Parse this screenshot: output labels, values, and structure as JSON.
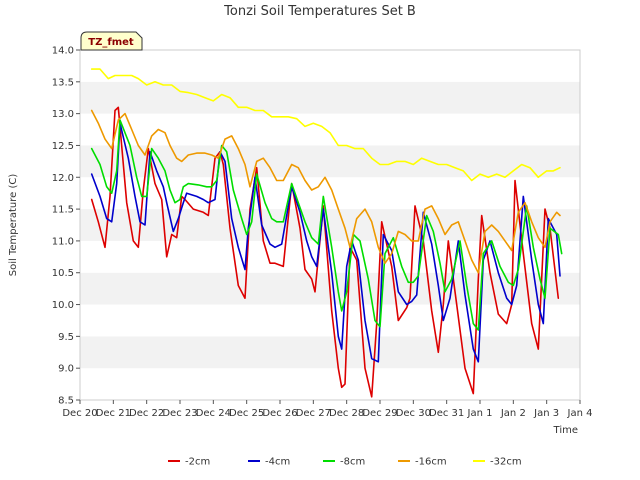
{
  "chart_data": {
    "type": "line",
    "title": "Tonzi Soil Temperatures Set B",
    "xlabel": "Time",
    "ylabel": "Soil Temperature (C)",
    "badge": "TZ_fmet",
    "xlim": [
      0,
      15
    ],
    "ylim": [
      8.5,
      14.0
    ],
    "yticks": [
      8.5,
      9.0,
      9.5,
      10.0,
      10.5,
      11.0,
      11.5,
      12.0,
      12.5,
      13.0,
      13.5,
      14.0
    ],
    "ytick_labels": [
      "8.5",
      "9.0",
      "9.5",
      "10.0",
      "10.5",
      "11.0",
      "11.5",
      "12.0",
      "12.5",
      "13.0",
      "13.5",
      "14.0"
    ],
    "xticks": [
      0,
      1,
      2,
      3,
      4,
      5,
      6,
      7,
      8,
      9,
      10,
      11,
      12,
      13,
      14,
      15
    ],
    "xtick_labels": [
      "Dec 20",
      "Dec 21",
      "Dec 22",
      "Dec 23",
      "Dec 24",
      "Dec 25",
      "Dec 26",
      "Dec 27",
      "Dec 28",
      "Dec 29",
      "Dec 30",
      "Dec 31",
      "Jan 1",
      "Jan 2",
      "Jan 3",
      "Jan 4"
    ],
    "grid": "horizontal bands",
    "legend": "bottom",
    "series": [
      {
        "name": "-2cm",
        "color": "#dd0000",
        "x": [
          0.35,
          0.55,
          0.75,
          0.9,
          1.05,
          1.15,
          1.4,
          1.6,
          1.75,
          1.9,
          2.05,
          2.25,
          2.45,
          2.6,
          2.75,
          2.9,
          3.05,
          3.15,
          3.4,
          3.7,
          3.85,
          4.05,
          4.2,
          4.3,
          4.5,
          4.75,
          4.95,
          5.1,
          5.3,
          5.5,
          5.7,
          5.85,
          6.1,
          6.35,
          6.6,
          6.75,
          6.95,
          7.05,
          7.3,
          7.55,
          7.75,
          7.85,
          7.95,
          8.1,
          8.3,
          8.55,
          8.75,
          8.9,
          9.05,
          9.35,
          9.55,
          9.8,
          9.9,
          10.05,
          10.3,
          10.55,
          10.75,
          10.9,
          11.05,
          11.3,
          11.55,
          11.8,
          11.95,
          12.05,
          12.3,
          12.55,
          12.8,
          12.95,
          13.05,
          13.3,
          13.55,
          13.75,
          13.95,
          14.1,
          14.35
        ],
        "values": [
          11.65,
          11.3,
          10.9,
          11.7,
          13.05,
          13.1,
          11.6,
          11.0,
          10.9,
          11.8,
          12.45,
          11.9,
          11.65,
          10.75,
          11.1,
          11.05,
          11.7,
          11.65,
          11.5,
          11.45,
          11.4,
          12.3,
          12.4,
          12.2,
          11.2,
          10.3,
          10.1,
          11.5,
          12.15,
          11.0,
          10.65,
          10.65,
          10.6,
          11.9,
          11.2,
          10.55,
          10.4,
          10.2,
          11.55,
          9.9,
          9.0,
          8.7,
          8.75,
          10.9,
          10.7,
          9.0,
          8.55,
          9.7,
          11.3,
          10.6,
          9.75,
          9.95,
          10.1,
          11.55,
          11.0,
          9.9,
          9.25,
          10.0,
          11.0,
          10.0,
          9.0,
          8.6,
          10.4,
          11.4,
          10.5,
          9.85,
          9.7,
          10.0,
          11.95,
          10.8,
          9.7,
          9.3,
          11.5,
          11.2,
          10.1
        ]
      },
      {
        "name": "-4cm",
        "color": "#0000cc",
        "x": [
          0.35,
          0.6,
          0.8,
          0.95,
          1.1,
          1.2,
          1.45,
          1.65,
          1.8,
          1.95,
          2.1,
          2.3,
          2.5,
          2.6,
          2.8,
          2.95,
          3.1,
          3.2,
          3.5,
          3.7,
          3.85,
          4.05,
          4.2,
          4.35,
          4.55,
          4.75,
          4.95,
          5.05,
          5.25,
          5.45,
          5.7,
          5.85,
          6.05,
          6.35,
          6.6,
          6.8,
          6.95,
          7.1,
          7.3,
          7.55,
          7.75,
          7.85,
          8.0,
          8.15,
          8.35,
          8.55,
          8.75,
          8.95,
          9.1,
          9.35,
          9.55,
          9.8,
          9.95,
          10.1,
          10.3,
          10.55,
          10.75,
          10.9,
          11.1,
          11.35,
          11.55,
          11.8,
          11.95,
          12.1,
          12.3,
          12.55,
          12.8,
          12.95,
          13.1,
          13.3,
          13.55,
          13.75,
          13.9,
          14.05,
          14.3,
          14.4
        ],
        "values": [
          12.05,
          11.7,
          11.35,
          11.3,
          11.9,
          12.85,
          12.3,
          11.7,
          11.3,
          11.25,
          12.4,
          12.1,
          11.85,
          11.6,
          11.15,
          11.35,
          11.6,
          11.75,
          11.7,
          11.65,
          11.6,
          11.65,
          12.4,
          12.25,
          11.35,
          10.9,
          10.55,
          11.2,
          12.0,
          11.25,
          10.95,
          10.9,
          10.95,
          11.85,
          11.45,
          11.0,
          10.75,
          10.6,
          11.5,
          10.5,
          9.5,
          9.3,
          10.6,
          11.0,
          10.7,
          9.75,
          9.15,
          9.1,
          11.1,
          10.85,
          10.2,
          10.0,
          10.05,
          10.15,
          11.45,
          10.95,
          10.3,
          9.75,
          10.1,
          11.0,
          10.15,
          9.3,
          9.1,
          10.7,
          11.0,
          10.5,
          10.1,
          10.0,
          10.3,
          11.7,
          10.7,
          10.0,
          9.7,
          11.35,
          11.1,
          10.45
        ]
      },
      {
        "name": "-8cm",
        "color": "#00dd00",
        "x": [
          0.35,
          0.6,
          0.8,
          0.95,
          1.1,
          1.2,
          1.5,
          1.7,
          1.85,
          2.0,
          2.15,
          2.35,
          2.55,
          2.7,
          2.85,
          3.0,
          3.1,
          3.25,
          3.55,
          3.8,
          3.95,
          4.1,
          4.25,
          4.4,
          4.6,
          4.85,
          5.0,
          5.15,
          5.3,
          5.55,
          5.75,
          5.9,
          6.1,
          6.35,
          6.55,
          6.75,
          6.95,
          7.15,
          7.3,
          7.55,
          7.75,
          7.85,
          8.0,
          8.2,
          8.4,
          8.65,
          8.85,
          9.0,
          9.15,
          9.4,
          9.65,
          9.85,
          10.0,
          10.15,
          10.4,
          10.6,
          10.8,
          10.95,
          11.15,
          11.4,
          11.6,
          11.8,
          11.95,
          12.1,
          12.35,
          12.6,
          12.85,
          13.0,
          13.15,
          13.4,
          13.6,
          13.8,
          13.95,
          14.1,
          14.35,
          14.45
        ],
        "values": [
          12.45,
          12.2,
          11.85,
          11.75,
          12.1,
          12.9,
          12.5,
          12.0,
          11.7,
          11.7,
          12.45,
          12.3,
          12.1,
          11.8,
          11.6,
          11.65,
          11.85,
          11.9,
          11.88,
          11.85,
          11.85,
          11.95,
          12.5,
          12.4,
          11.8,
          11.35,
          11.1,
          11.3,
          12.05,
          11.6,
          11.35,
          11.3,
          11.3,
          11.9,
          11.6,
          11.3,
          11.05,
          10.95,
          11.7,
          10.9,
          10.2,
          9.9,
          10.2,
          11.1,
          11.0,
          10.4,
          9.75,
          9.65,
          10.8,
          11.05,
          10.6,
          10.35,
          10.35,
          10.45,
          11.4,
          11.15,
          10.65,
          10.2,
          10.4,
          11.0,
          10.3,
          9.7,
          9.6,
          10.8,
          11.0,
          10.6,
          10.35,
          10.3,
          10.55,
          11.55,
          10.9,
          10.4,
          10.1,
          11.2,
          11.1,
          10.8
        ]
      },
      {
        "name": "-16cm",
        "color": "#ee9900",
        "x": [
          0.35,
          0.55,
          0.75,
          0.95,
          1.15,
          1.35,
          1.55,
          1.75,
          1.95,
          2.15,
          2.35,
          2.55,
          2.7,
          2.9,
          3.05,
          3.25,
          3.5,
          3.75,
          3.95,
          4.15,
          4.35,
          4.55,
          4.75,
          4.95,
          5.1,
          5.3,
          5.5,
          5.7,
          5.9,
          6.1,
          6.35,
          6.55,
          6.75,
          6.95,
          7.15,
          7.35,
          7.55,
          7.75,
          7.95,
          8.1,
          8.3,
          8.55,
          8.75,
          8.95,
          9.15,
          9.35,
          9.55,
          9.75,
          9.95,
          10.15,
          10.35,
          10.55,
          10.75,
          10.95,
          11.15,
          11.35,
          11.55,
          11.75,
          11.95,
          12.15,
          12.35,
          12.55,
          12.75,
          12.95,
          13.15,
          13.35,
          13.55,
          13.75,
          13.95,
          14.1,
          14.3,
          14.4
        ],
        "values": [
          13.05,
          12.85,
          12.6,
          12.45,
          12.9,
          13.0,
          12.75,
          12.5,
          12.35,
          12.65,
          12.75,
          12.7,
          12.5,
          12.3,
          12.25,
          12.35,
          12.38,
          12.38,
          12.35,
          12.3,
          12.6,
          12.65,
          12.45,
          12.2,
          11.85,
          12.25,
          12.3,
          12.15,
          11.95,
          11.95,
          12.2,
          12.15,
          11.95,
          11.8,
          11.85,
          12.0,
          11.8,
          11.5,
          11.2,
          10.9,
          11.35,
          11.5,
          11.3,
          10.9,
          10.65,
          10.8,
          11.15,
          11.1,
          11.0,
          11.0,
          11.5,
          11.55,
          11.35,
          11.1,
          11.25,
          11.3,
          11.0,
          10.7,
          10.5,
          11.15,
          11.25,
          11.15,
          11.0,
          10.85,
          11.45,
          11.6,
          11.3,
          11.05,
          10.9,
          11.3,
          11.45,
          11.4
        ]
      },
      {
        "name": "-32cm",
        "color": "#ffff00",
        "x": [
          0.35,
          0.6,
          0.85,
          1.05,
          1.3,
          1.55,
          1.75,
          2.0,
          2.25,
          2.5,
          2.75,
          3.0,
          3.25,
          3.5,
          3.75,
          4.0,
          4.25,
          4.5,
          4.75,
          5.0,
          5.25,
          5.5,
          5.75,
          6.0,
          6.25,
          6.5,
          6.75,
          7.0,
          7.25,
          7.5,
          7.75,
          8.0,
          8.25,
          8.5,
          8.75,
          9.0,
          9.25,
          9.5,
          9.75,
          10.0,
          10.25,
          10.5,
          10.75,
          11.0,
          11.25,
          11.5,
          11.75,
          12.0,
          12.25,
          12.5,
          12.75,
          13.0,
          13.25,
          13.5,
          13.75,
          14.0,
          14.2,
          14.4
        ],
        "values": [
          13.7,
          13.7,
          13.55,
          13.6,
          13.6,
          13.6,
          13.55,
          13.45,
          13.5,
          13.45,
          13.45,
          13.35,
          13.33,
          13.3,
          13.25,
          13.2,
          13.3,
          13.25,
          13.1,
          13.1,
          13.05,
          13.05,
          12.95,
          12.95,
          12.95,
          12.92,
          12.8,
          12.85,
          12.8,
          12.7,
          12.5,
          12.5,
          12.45,
          12.45,
          12.3,
          12.2,
          12.2,
          12.25,
          12.25,
          12.2,
          12.3,
          12.25,
          12.2,
          12.2,
          12.15,
          12.1,
          11.95,
          12.05,
          12.0,
          12.05,
          12.0,
          12.1,
          12.2,
          12.15,
          12.0,
          12.1,
          12.1,
          12.15
        ]
      }
    ]
  }
}
